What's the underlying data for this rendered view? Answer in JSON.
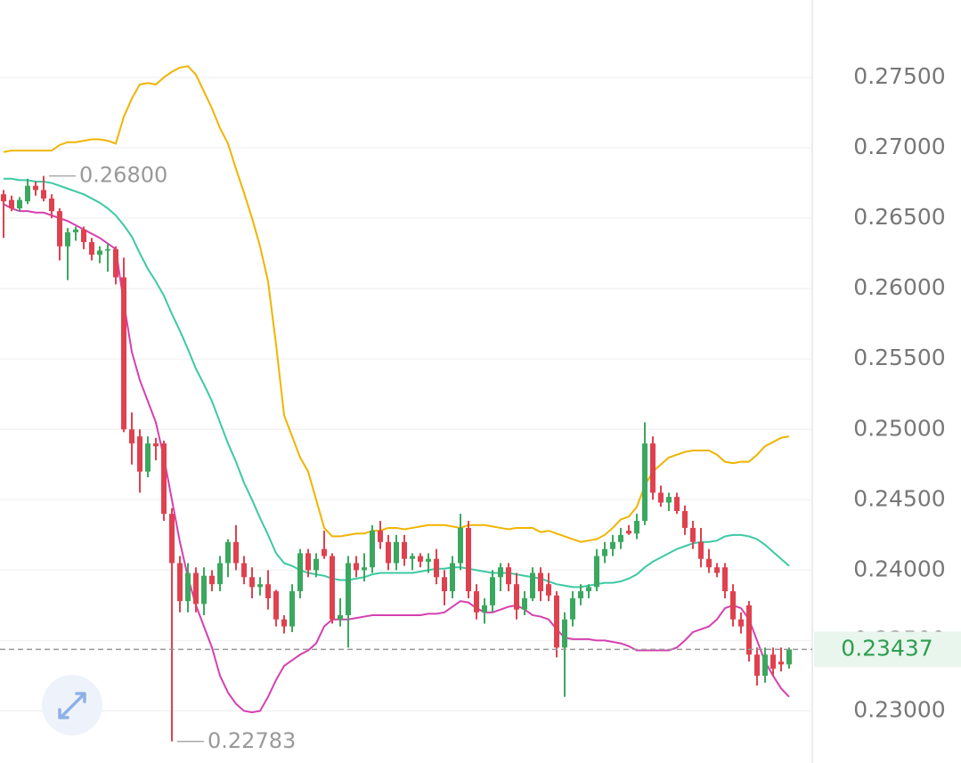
{
  "chart_data": {
    "type": "candlestick",
    "ylim": [
      0.2263,
      0.2805
    ],
    "yticks": [
      {
        "value": 0.23,
        "label": "0.23000"
      },
      {
        "value": 0.235,
        "label": "0.23500"
      },
      {
        "value": 0.24,
        "label": "0.24000"
      },
      {
        "value": 0.245,
        "label": "0.24500"
      },
      {
        "value": 0.25,
        "label": "0.25000"
      },
      {
        "value": 0.255,
        "label": "0.25500"
      },
      {
        "value": 0.26,
        "label": "0.26000"
      },
      {
        "value": 0.265,
        "label": "0.26500"
      },
      {
        "value": 0.27,
        "label": "0.27000"
      },
      {
        "value": 0.275,
        "label": "0.27500"
      }
    ],
    "grid": true,
    "up_color": "#3aa85e",
    "down_color": "#e0414f",
    "open": [
      0.2667,
      0.2663,
      0.2657,
      0.2662,
      0.2673,
      0.267,
      0.2664,
      0.2655,
      0.263,
      0.264,
      0.2642,
      0.2633,
      0.2624,
      0.2627,
      0.2628,
      0.2608,
      0.25,
      0.2495,
      0.247,
      0.249,
      0.249,
      0.244,
      0.2405,
      0.2378,
      0.2398,
      0.2376,
      0.2396,
      0.239,
      0.2405,
      0.242,
      0.2405,
      0.2395,
      0.2388,
      0.239,
      0.2385,
      0.2365,
      0.236,
      0.2385,
      0.2412,
      0.24,
      0.2415,
      0.241,
      0.2365,
      0.2368,
      0.2405,
      0.24,
      0.2402,
      0.2428,
      0.242,
      0.2405,
      0.242,
      0.2408,
      0.241,
      0.2406,
      0.2408,
      0.2395,
      0.2385,
      0.2405,
      0.243,
      0.2385,
      0.237,
      0.2375,
      0.2395,
      0.2402,
      0.239,
      0.2372,
      0.238,
      0.2398,
      0.239,
      0.2382,
      0.2345,
      0.2365,
      0.238,
      0.2385,
      0.2388,
      0.241,
      0.2415,
      0.242,
      0.2428,
      0.2426,
      0.2435,
      0.249,
      0.2455,
      0.2448,
      0.2452,
      0.2442,
      0.243,
      0.242,
      0.2408,
      0.2402,
      0.2402,
      0.2385,
      0.2365,
      0.2375,
      0.234,
      0.2325,
      0.234,
      0.2335,
      0.2333
    ],
    "high": [
      0.267,
      0.2666,
      0.2665,
      0.2678,
      0.2676,
      0.268,
      0.2667,
      0.2657,
      0.2643,
      0.2644,
      0.2644,
      0.2636,
      0.263,
      0.2632,
      0.263,
      0.2622,
      0.2512,
      0.25,
      0.2495,
      0.2494,
      0.2492,
      0.2444,
      0.241,
      0.2405,
      0.2402,
      0.2402,
      0.24,
      0.241,
      0.2422,
      0.2432,
      0.241,
      0.2402,
      0.2395,
      0.24,
      0.2386,
      0.2368,
      0.239,
      0.2415,
      0.2415,
      0.2412,
      0.2428,
      0.2412,
      0.238,
      0.241,
      0.241,
      0.2412,
      0.2432,
      0.2435,
      0.2425,
      0.2425,
      0.2425,
      0.2412,
      0.2412,
      0.2412,
      0.2415,
      0.24,
      0.241,
      0.244,
      0.2435,
      0.239,
      0.238,
      0.24,
      0.2405,
      0.2405,
      0.2398,
      0.2385,
      0.2402,
      0.2402,
      0.2398,
      0.2385,
      0.237,
      0.2385,
      0.239,
      0.239,
      0.2415,
      0.242,
      0.2425,
      0.243,
      0.2432,
      0.244,
      0.2505,
      0.2495,
      0.246,
      0.2455,
      0.2455,
      0.2446,
      0.2435,
      0.243,
      0.2415,
      0.2405,
      0.2405,
      0.239,
      0.237,
      0.2378,
      0.2345,
      0.2345,
      0.2345,
      0.2345,
      0.2345
    ],
    "low": [
      0.2636,
      0.2655,
      0.2655,
      0.266,
      0.2666,
      0.2662,
      0.265,
      0.262,
      0.2606,
      0.2634,
      0.2628,
      0.262,
      0.2618,
      0.2612,
      0.2603,
      0.2498,
      0.2475,
      0.2455,
      0.2466,
      0.2478,
      0.2435,
      0.22783,
      0.237,
      0.237,
      0.237,
      0.2368,
      0.2385,
      0.2385,
      0.2395,
      0.24,
      0.239,
      0.238,
      0.2382,
      0.2372,
      0.236,
      0.2355,
      0.2356,
      0.238,
      0.2395,
      0.2395,
      0.2408,
      0.2362,
      0.236,
      0.2345,
      0.2395,
      0.2392,
      0.2398,
      0.2415,
      0.24,
      0.24,
      0.2403,
      0.24,
      0.2402,
      0.2398,
      0.239,
      0.2375,
      0.238,
      0.24,
      0.238,
      0.2365,
      0.2362,
      0.237,
      0.2385,
      0.2385,
      0.2365,
      0.2368,
      0.2378,
      0.2378,
      0.2378,
      0.2338,
      0.231,
      0.236,
      0.2375,
      0.238,
      0.2385,
      0.2405,
      0.241,
      0.2415,
      0.2425,
      0.2422,
      0.2432,
      0.245,
      0.2445,
      0.2442,
      0.244,
      0.2425,
      0.2415,
      0.2402,
      0.2398,
      0.2395,
      0.238,
      0.236,
      0.2355,
      0.2335,
      0.2318,
      0.232,
      0.2325,
      0.2328,
      0.233
    ],
    "close": [
      0.2662,
      0.2657,
      0.2663,
      0.2673,
      0.267,
      0.2664,
      0.2655,
      0.263,
      0.264,
      0.2642,
      0.2633,
      0.2624,
      0.2627,
      0.2628,
      0.2608,
      0.25,
      0.249,
      0.247,
      0.249,
      0.2488,
      0.244,
      0.2405,
      0.2378,
      0.2398,
      0.2376,
      0.2396,
      0.239,
      0.2405,
      0.242,
      0.2405,
      0.2395,
      0.2388,
      0.239,
      0.238,
      0.2365,
      0.236,
      0.2385,
      0.2412,
      0.24,
      0.2408,
      0.241,
      0.2365,
      0.2368,
      0.2405,
      0.24,
      0.2402,
      0.2428,
      0.242,
      0.2405,
      0.242,
      0.2408,
      0.241,
      0.2406,
      0.2408,
      0.2395,
      0.2385,
      0.2405,
      0.243,
      0.2385,
      0.237,
      0.2375,
      0.2395,
      0.2402,
      0.239,
      0.2372,
      0.238,
      0.2398,
      0.2385,
      0.2382,
      0.2345,
      0.2365,
      0.238,
      0.2385,
      0.2388,
      0.241,
      0.2415,
      0.242,
      0.2425,
      0.2426,
      0.2435,
      0.249,
      0.2455,
      0.2448,
      0.2452,
      0.2442,
      0.243,
      0.242,
      0.2408,
      0.2402,
      0.2398,
      0.2385,
      0.2365,
      0.236,
      0.234,
      0.2325,
      0.234,
      0.233,
      0.2333,
      0.23437
    ],
    "series": [
      {
        "color": "#f0b400",
        "values": [
          0.2697,
          0.2698,
          0.2698,
          0.2698,
          0.2698,
          0.2698,
          0.2698,
          0.2702,
          0.2704,
          0.2704,
          0.2705,
          0.2706,
          0.2706,
          0.2705,
          0.2703,
          0.2722,
          0.2735,
          0.2745,
          0.2746,
          0.2745,
          0.275,
          0.2754,
          0.2757,
          0.2758,
          0.2752,
          0.274,
          0.2728,
          0.2714,
          0.2703,
          0.2685,
          0.2668,
          0.265,
          0.263,
          0.2605,
          0.256,
          0.251,
          0.2495,
          0.248,
          0.247,
          0.245,
          0.243,
          0.2424,
          0.2424,
          0.2425,
          0.2426,
          0.2426,
          0.2428,
          0.2428,
          0.243,
          0.243,
          0.2429,
          0.243,
          0.2431,
          0.2432,
          0.2432,
          0.2432,
          0.2431,
          0.243,
          0.2432,
          0.2432,
          0.2432,
          0.2431,
          0.243,
          0.2429,
          0.243,
          0.243,
          0.243,
          0.2427,
          0.2428,
          0.2426,
          0.2424,
          0.2422,
          0.242,
          0.2421,
          0.2422,
          0.2425,
          0.243,
          0.2436,
          0.2438,
          0.2445,
          0.246,
          0.247,
          0.2475,
          0.248,
          0.2482,
          0.2484,
          0.2485,
          0.2485,
          0.2485,
          0.2482,
          0.2477,
          0.2476,
          0.2477,
          0.2477,
          0.2482,
          0.2488,
          0.2491,
          0.2494,
          0.2495
        ]
      },
      {
        "color": "#3cc9a3",
        "values": [
          0.2678,
          0.2678,
          0.2677,
          0.2677,
          0.2676,
          0.2676,
          0.2675,
          0.2673,
          0.2671,
          0.2669,
          0.2667,
          0.2664,
          0.2661,
          0.2657,
          0.2652,
          0.2645,
          0.2637,
          0.2625,
          0.2614,
          0.2605,
          0.2595,
          0.2582,
          0.257,
          0.2557,
          0.2543,
          0.2532,
          0.252,
          0.2505,
          0.249,
          0.2477,
          0.2462,
          0.245,
          0.2437,
          0.2425,
          0.2412,
          0.2405,
          0.2403,
          0.24,
          0.2398,
          0.2397,
          0.2396,
          0.2394,
          0.2393,
          0.2393,
          0.2394,
          0.2395,
          0.2397,
          0.2398,
          0.2398,
          0.2398,
          0.2398,
          0.2398,
          0.2399,
          0.24,
          0.2401,
          0.2401,
          0.2402,
          0.2402,
          0.2401,
          0.24,
          0.2399,
          0.2398,
          0.2398,
          0.2398,
          0.2397,
          0.2396,
          0.2395,
          0.2394,
          0.2392,
          0.239,
          0.2389,
          0.2388,
          0.2388,
          0.2389,
          0.239,
          0.2391,
          0.2391,
          0.2392,
          0.2394,
          0.2397,
          0.2402,
          0.2406,
          0.2409,
          0.2412,
          0.2415,
          0.2417,
          0.2419,
          0.242,
          0.242,
          0.2421,
          0.2424,
          0.2425,
          0.2425,
          0.2424,
          0.2422,
          0.2418,
          0.2413,
          0.2408,
          0.2403
        ]
      },
      {
        "color": "#d63fb0",
        "values": [
          0.266,
          0.2657,
          0.2655,
          0.2655,
          0.2654,
          0.2654,
          0.2652,
          0.265,
          0.2648,
          0.2645,
          0.2642,
          0.2639,
          0.2636,
          0.2632,
          0.2628,
          0.259,
          0.2555,
          0.2535,
          0.252,
          0.2505,
          0.248,
          0.245,
          0.242,
          0.2395,
          0.2375,
          0.236,
          0.2345,
          0.2325,
          0.2313,
          0.2305,
          0.23,
          0.2299,
          0.23,
          0.231,
          0.2322,
          0.2332,
          0.2336,
          0.234,
          0.2343,
          0.2348,
          0.236,
          0.2365,
          0.2365,
          0.2365,
          0.2366,
          0.2367,
          0.2368,
          0.2368,
          0.2368,
          0.2368,
          0.2368,
          0.2368,
          0.2368,
          0.2369,
          0.2369,
          0.237,
          0.2374,
          0.2378,
          0.2377,
          0.2373,
          0.237,
          0.237,
          0.2372,
          0.2374,
          0.2375,
          0.2372,
          0.2368,
          0.2367,
          0.2365,
          0.2358,
          0.2352,
          0.2351,
          0.2351,
          0.2351,
          0.235,
          0.235,
          0.2349,
          0.2348,
          0.2346,
          0.2343,
          0.2343,
          0.2343,
          0.2343,
          0.2343,
          0.2345,
          0.235,
          0.2356,
          0.2358,
          0.236,
          0.2365,
          0.2373,
          0.2375,
          0.2373,
          0.2365,
          0.235,
          0.2335,
          0.2325,
          0.2316,
          0.231
        ]
      }
    ],
    "annotations": [
      {
        "value": 0.268,
        "label": "0.26800",
        "of": "high"
      },
      {
        "value": 0.22783,
        "label": "0.22783",
        "of": "low"
      }
    ],
    "last_price": {
      "value": 0.23437,
      "label": "0.23437",
      "color": "#2e9e4f"
    }
  }
}
